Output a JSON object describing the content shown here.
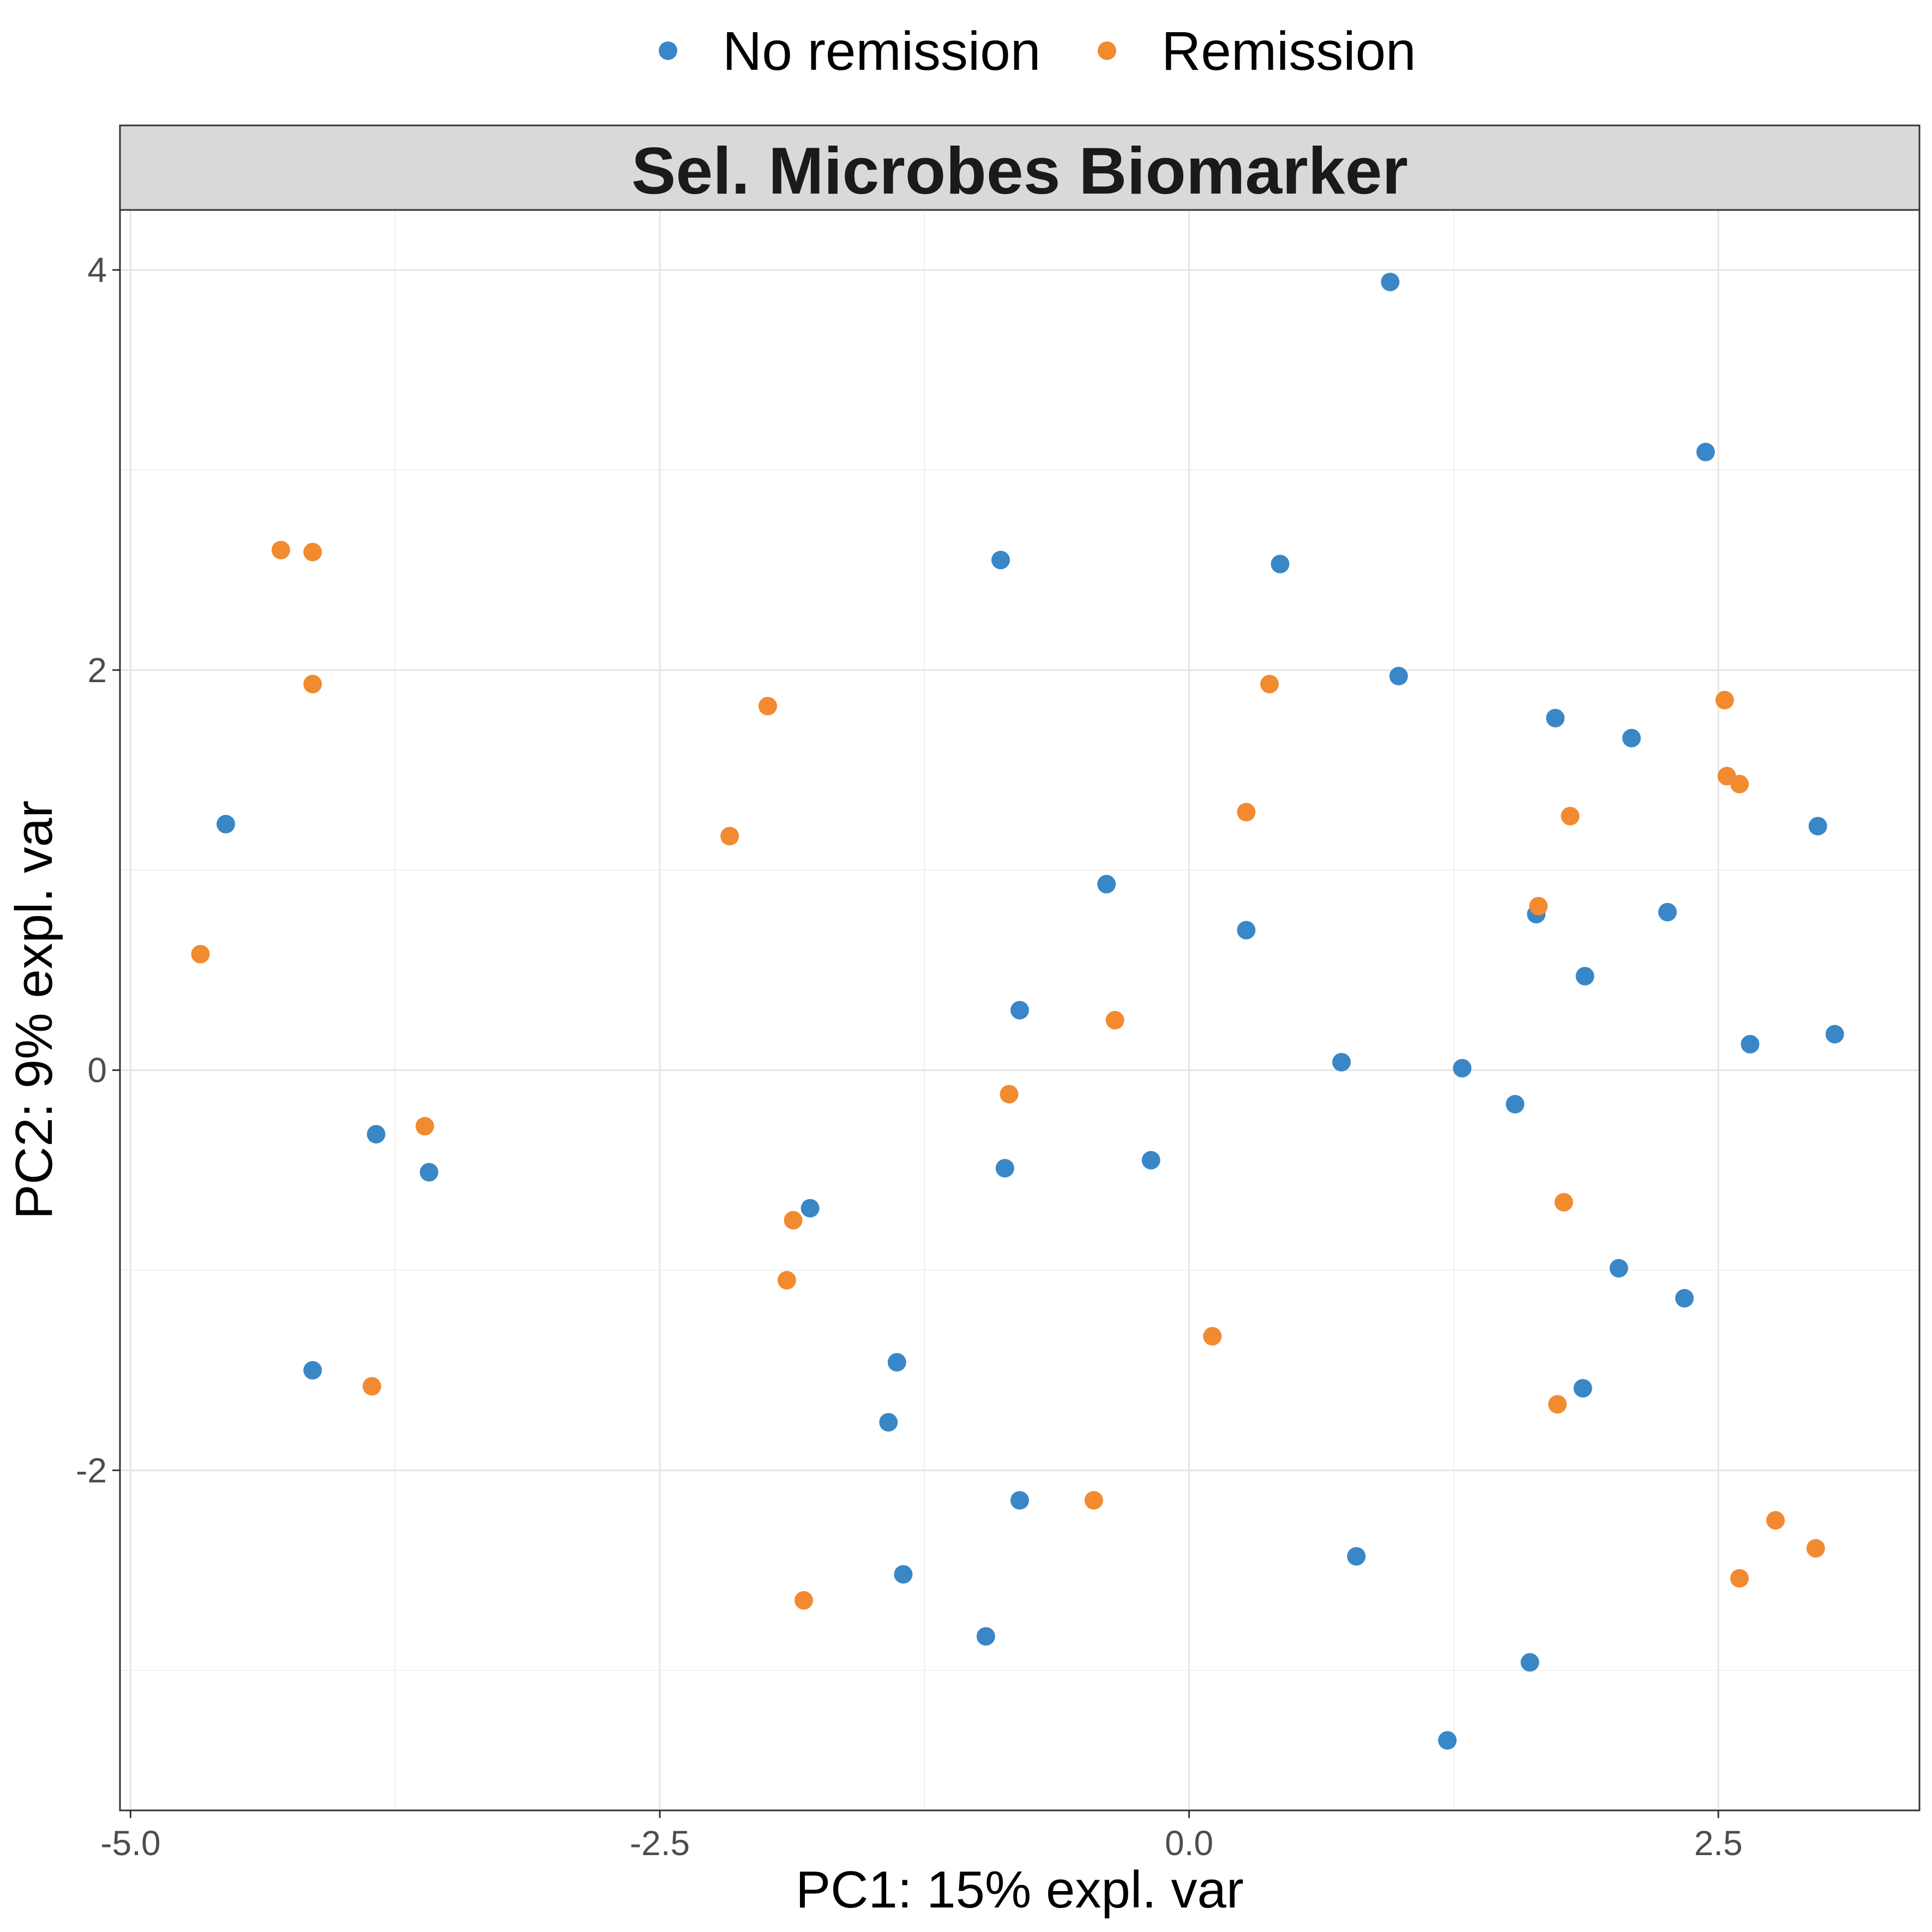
{
  "chart_data": {
    "type": "scatter",
    "title": "Sel. Microbes Biomarker",
    "xlabel": "PC1: 15% expl. var",
    "ylabel": "PC2: 9% expl. var",
    "xlim": [
      -5.05,
      3.45
    ],
    "ylim": [
      -3.7,
      4.3
    ],
    "xticks": [
      -5.0,
      -2.5,
      0.0,
      2.5
    ],
    "xtick_labels": [
      "-5.0",
      "-2.5",
      "0.0",
      "2.5"
    ],
    "yticks": [
      -2,
      0,
      2,
      4
    ],
    "ytick_labels": [
      "-2",
      "0",
      "2",
      "4"
    ],
    "grid": true,
    "legend_position": "top",
    "series": [
      {
        "name": "No remission",
        "color": "#3a87c8",
        "points": [
          {
            "x": -4.55,
            "y": 1.23
          },
          {
            "x": -3.84,
            "y": -0.32
          },
          {
            "x": -3.59,
            "y": -0.51
          },
          {
            "x": -4.14,
            "y": -1.5
          },
          {
            "x": -0.89,
            "y": 2.55
          },
          {
            "x": 0.43,
            "y": 2.53
          },
          {
            "x": 0.95,
            "y": 3.94
          },
          {
            "x": 2.44,
            "y": 3.09
          },
          {
            "x": 0.99,
            "y": 1.97
          },
          {
            "x": 1.73,
            "y": 1.76
          },
          {
            "x": 2.09,
            "y": 1.66
          },
          {
            "x": 2.97,
            "y": 1.22
          },
          {
            "x": -0.39,
            "y": 0.93
          },
          {
            "x": 0.27,
            "y": 0.7
          },
          {
            "x": 1.64,
            "y": 0.78
          },
          {
            "x": 2.26,
            "y": 0.79
          },
          {
            "x": 1.87,
            "y": 0.47
          },
          {
            "x": -0.8,
            "y": 0.3
          },
          {
            "x": 0.72,
            "y": 0.04
          },
          {
            "x": 1.29,
            "y": 0.01
          },
          {
            "x": 2.65,
            "y": 0.13
          },
          {
            "x": 3.05,
            "y": 0.18
          },
          {
            "x": 1.54,
            "y": -0.17
          },
          {
            "x": -0.87,
            "y": -0.49
          },
          {
            "x": -0.18,
            "y": -0.45
          },
          {
            "x": -1.79,
            "y": -0.69
          },
          {
            "x": 2.03,
            "y": -0.99
          },
          {
            "x": 2.34,
            "y": -1.14
          },
          {
            "x": -1.38,
            "y": -1.46
          },
          {
            "x": -1.42,
            "y": -1.76
          },
          {
            "x": 1.86,
            "y": -1.59
          },
          {
            "x": -0.8,
            "y": -2.15
          },
          {
            "x": -1.35,
            "y": -2.52
          },
          {
            "x": 0.79,
            "y": -2.43
          },
          {
            "x": -0.96,
            "y": -2.83
          },
          {
            "x": 1.61,
            "y": -2.96
          },
          {
            "x": 1.22,
            "y": -3.35
          }
        ]
      },
      {
        "name": "Remission",
        "color": "#f28a30",
        "points": [
          {
            "x": -4.29,
            "y": 2.6
          },
          {
            "x": -4.14,
            "y": 2.59
          },
          {
            "x": -4.14,
            "y": 1.93
          },
          {
            "x": -4.67,
            "y": 0.58
          },
          {
            "x": -3.61,
            "y": -0.28
          },
          {
            "x": -3.86,
            "y": -1.58
          },
          {
            "x": -1.99,
            "y": 1.82
          },
          {
            "x": -2.17,
            "y": 1.17
          },
          {
            "x": -1.87,
            "y": -0.75
          },
          {
            "x": -1.9,
            "y": -1.05
          },
          {
            "x": -1.82,
            "y": -2.65
          },
          {
            "x": -0.85,
            "y": -0.12
          },
          {
            "x": -0.35,
            "y": 0.25
          },
          {
            "x": -0.45,
            "y": -2.15
          },
          {
            "x": 0.38,
            "y": 1.93
          },
          {
            "x": 0.27,
            "y": 1.29
          },
          {
            "x": 0.11,
            "y": -1.33
          },
          {
            "x": 1.8,
            "y": 1.27
          },
          {
            "x": 1.65,
            "y": 0.82
          },
          {
            "x": 1.77,
            "y": -0.66
          },
          {
            "x": 1.74,
            "y": -1.67
          },
          {
            "x": 2.53,
            "y": 1.85
          },
          {
            "x": 2.54,
            "y": 1.47
          },
          {
            "x": 2.6,
            "y": 1.43
          },
          {
            "x": 2.6,
            "y": -2.54
          },
          {
            "x": 2.77,
            "y": -2.25
          },
          {
            "x": 2.96,
            "y": -2.39
          }
        ]
      }
    ]
  }
}
